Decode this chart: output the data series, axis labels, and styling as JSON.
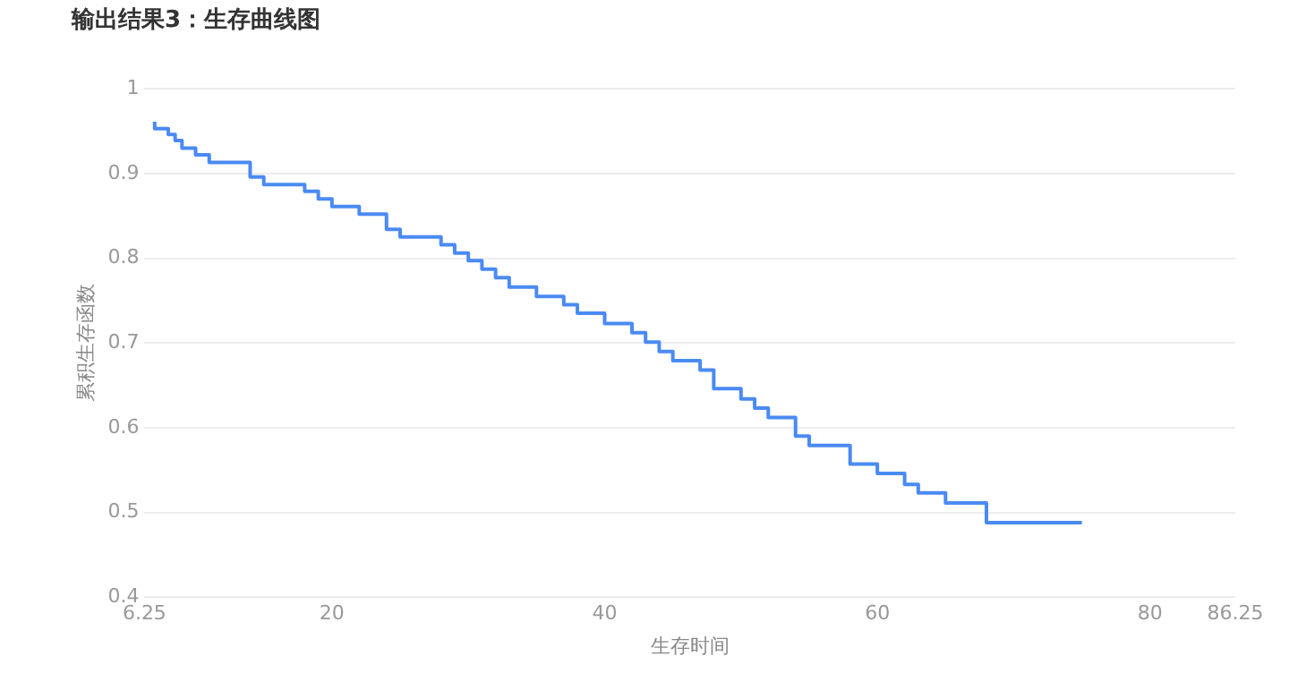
{
  "chart_data": {
    "type": "step",
    "title": "输出结果3：生存曲线图",
    "xlabel": "生存时间",
    "ylabel": "累积生存函数",
    "x": [
      7,
      8,
      8.5,
      9,
      10,
      11,
      14,
      15,
      18,
      19,
      20,
      22,
      24,
      25,
      28,
      29,
      30,
      31,
      32,
      33,
      35,
      37,
      38,
      40,
      42,
      43,
      44,
      45,
      47,
      48,
      50,
      51,
      52,
      54,
      55,
      58,
      60,
      62,
      63,
      65,
      68,
      70,
      75
    ],
    "series": [
      {
        "color": "#4a8af4",
        "values": [
          0.961,
          0.953,
          0.946,
          0.939,
          0.93,
          0.922,
          0.913,
          0.896,
          0.887,
          0.879,
          0.87,
          0.861,
          0.852,
          0.834,
          0.825,
          0.816,
          0.806,
          0.797,
          0.787,
          0.777,
          0.766,
          0.755,
          0.745,
          0.735,
          0.723,
          0.712,
          0.701,
          0.69,
          0.679,
          0.668,
          0.646,
          0.634,
          0.623,
          0.612,
          0.59,
          0.579,
          0.557,
          0.546,
          0.533,
          0.523,
          0.511,
          0.488,
          0.488
        ]
      }
    ],
    "xlim": [
      6.25,
      86.25
    ],
    "xticks": [
      6.25,
      20,
      40,
      60,
      80,
      86.25
    ],
    "ylim": [
      0.4,
      1
    ],
    "yticks": [
      0.4,
      0.5,
      0.6,
      0.7,
      0.8,
      0.9,
      1
    ],
    "grid": "y",
    "legend": false,
    "marker": "none",
    "line_style": "solid"
  }
}
